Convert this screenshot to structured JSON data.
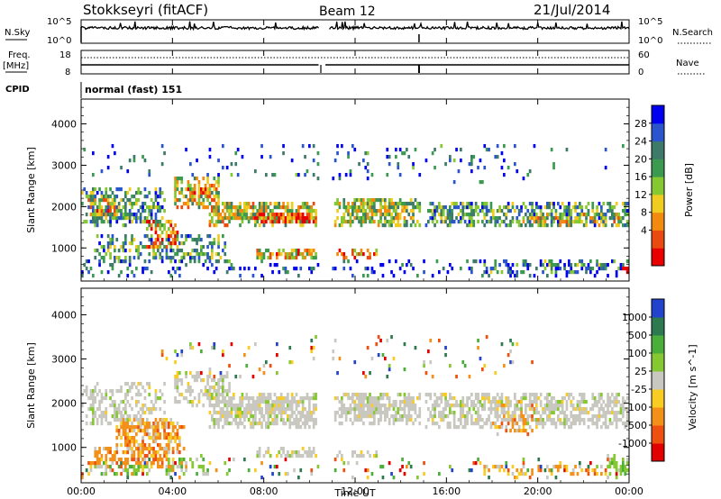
{
  "header": {
    "station": "Stokkseyri (fitACF)",
    "beam": "Beam 12",
    "date": "21/Jul/2014"
  },
  "chart_data": [
    {
      "id": "noise",
      "type": "line",
      "left_label": "N.Sky",
      "right_label": "N.Search",
      "left_ticks": [
        "10^5",
        "10^0"
      ],
      "right_ticks": [
        "10^5",
        "10^0"
      ],
      "series": [
        {
          "name": "N.Sky",
          "style": "solid"
        },
        {
          "name": "N.Search",
          "style": "dotted"
        }
      ]
    },
    {
      "id": "freq",
      "type": "line",
      "left_label_top": "Freq.",
      "left_label_bottom": "[MHz]",
      "right_label": "Nave",
      "left_ticks": [
        "18",
        "8"
      ],
      "right_ticks": [
        "60",
        "0"
      ],
      "series": [
        {
          "name": "Freq.",
          "style": "solid"
        },
        {
          "name": "Nave",
          "style": "dotted"
        }
      ]
    },
    {
      "id": "cpid",
      "type": "table",
      "label": "CPID",
      "text": "normal (fast) 151"
    },
    {
      "id": "power",
      "type": "heatmap",
      "ylabel": "Slant Range [km]",
      "ylim": [
        200,
        4600
      ],
      "yticks": [
        1000,
        2000,
        3000,
        4000
      ],
      "colorbar_label": "Power [dB]",
      "colorbar_ticks": [
        "28",
        "24",
        "20",
        "16",
        "12",
        "8",
        "4"
      ],
      "colors": [
        "#0000ee",
        "#2a55cc",
        "#3e7a6a",
        "#3c9a50",
        "#86c832",
        "#f0cc20",
        "#f28a10",
        "#e84a10",
        "#e80000"
      ]
    },
    {
      "id": "velocity",
      "type": "heatmap",
      "ylabel": "Slant Range [km]",
      "ylim": [
        200,
        4600
      ],
      "yticks": [
        1000,
        2000,
        3000,
        4000
      ],
      "colorbar_label": "Velocity [m s^-1]",
      "colorbar_ticks": [
        "1000",
        "500",
        "100",
        "25",
        "-25",
        "-100",
        "-500",
        "-1000"
      ],
      "colors": [
        "#2244cc",
        "#2e7a50",
        "#4cae3a",
        "#86c832",
        "#c8c8c0",
        "#f8cc22",
        "#f2901a",
        "#ee5010",
        "#e00000"
      ]
    }
  ],
  "time_axis": {
    "xlabel": "Time UT",
    "ticks": [
      "00:00",
      "04:00",
      "08:00",
      "12:00",
      "16:00",
      "20:00",
      "00:00"
    ]
  }
}
